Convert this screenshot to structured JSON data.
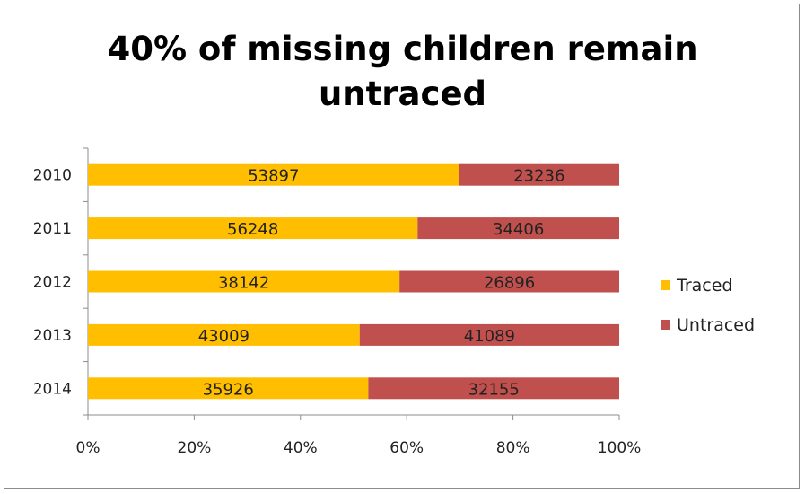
{
  "chart_data": {
    "type": "bar",
    "orientation": "horizontal",
    "stacking": "percent",
    "title": "40% of missing children remain untraced",
    "title_lines": [
      "40% of missing children remain",
      "untraced"
    ],
    "categories": [
      "2010",
      "2011",
      "2012",
      "2013",
      "2014"
    ],
    "series": [
      {
        "name": "Traced",
        "values": [
          53897,
          56248,
          38142,
          43009,
          35926
        ],
        "color": "#FFBF00"
      },
      {
        "name": "Untraced",
        "values": [
          23236,
          34406,
          26896,
          41089,
          32155
        ],
        "color": "#C0504D"
      }
    ],
    "xticks": [
      "0%",
      "20%",
      "40%",
      "60%",
      "80%",
      "100%"
    ],
    "xlim": [
      0,
      100
    ],
    "xlabel": "",
    "ylabel": "",
    "grid": false,
    "legend_position": "right"
  }
}
